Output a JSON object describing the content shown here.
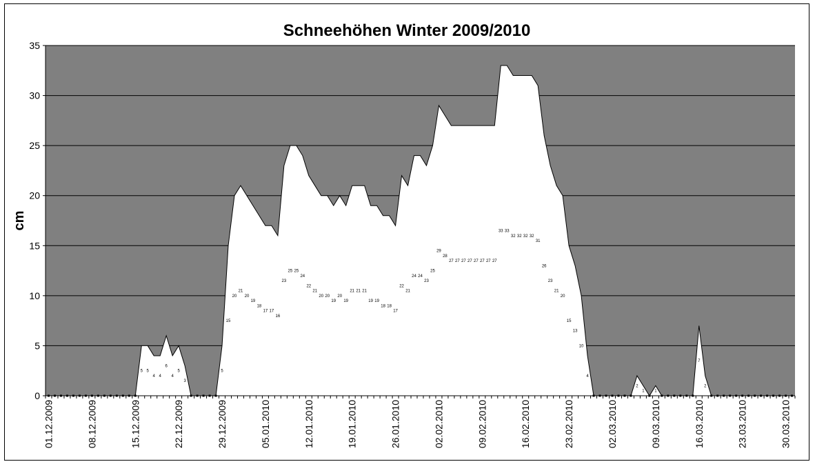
{
  "chart_data": {
    "type": "area",
    "title": "Schneehöhen Winter 2009/2010",
    "xlabel": "",
    "ylabel": "cm",
    "ylim": [
      0,
      35
    ],
    "yticks": [
      0,
      5,
      10,
      15,
      20,
      25,
      30,
      35
    ],
    "grid": true,
    "legend": "none",
    "x_start": "01.12.2009",
    "x_tick_labels": [
      "01.12.2009",
      "08.12.2009",
      "15.12.2009",
      "22.12.2009",
      "29.12.2009",
      "05.01.2010",
      "12.01.2010",
      "19.01.2010",
      "26.01.2010",
      "02.02.2010",
      "09.02.2010",
      "16.02.2010",
      "23.02.2010",
      "02.03.2010",
      "09.03.2010",
      "16.03.2010",
      "23.03.2010",
      "30.03.2010"
    ],
    "colors": {
      "plot_background": "#808080",
      "area_fill": "#ffffff",
      "line": "#000000",
      "grid": "#000000"
    },
    "dates": [
      "01.12.2009",
      "02.12.2009",
      "03.12.2009",
      "04.12.2009",
      "05.12.2009",
      "06.12.2009",
      "07.12.2009",
      "08.12.2009",
      "09.12.2009",
      "10.12.2009",
      "11.12.2009",
      "12.12.2009",
      "13.12.2009",
      "14.12.2009",
      "15.12.2009",
      "16.12.2009",
      "17.12.2009",
      "18.12.2009",
      "19.12.2009",
      "20.12.2009",
      "21.12.2009",
      "22.12.2009",
      "23.12.2009",
      "24.12.2009",
      "25.12.2009",
      "26.12.2009",
      "27.12.2009",
      "28.12.2009",
      "29.12.2009",
      "30.12.2009",
      "31.12.2009",
      "01.01.2010",
      "02.01.2010",
      "03.01.2010",
      "04.01.2010",
      "05.01.2010",
      "06.01.2010",
      "07.01.2010",
      "08.01.2010",
      "09.01.2010",
      "10.01.2010",
      "11.01.2010",
      "12.01.2010",
      "13.01.2010",
      "14.01.2010",
      "15.01.2010",
      "16.01.2010",
      "17.01.2010",
      "18.01.2010",
      "19.01.2010",
      "20.01.2010",
      "21.01.2010",
      "22.01.2010",
      "23.01.2010",
      "24.01.2010",
      "25.01.2010",
      "26.01.2010",
      "27.01.2010",
      "28.01.2010",
      "29.01.2010",
      "30.01.2010",
      "31.01.2010",
      "01.02.2010",
      "02.02.2010",
      "03.02.2010",
      "04.02.2010",
      "05.02.2010",
      "06.02.2010",
      "07.02.2010",
      "08.02.2010",
      "09.02.2010",
      "10.02.2010",
      "11.02.2010",
      "12.02.2010",
      "13.02.2010",
      "14.02.2010",
      "15.02.2010",
      "16.02.2010",
      "17.02.2010",
      "18.02.2010",
      "19.02.2010",
      "20.02.2010",
      "21.02.2010",
      "22.02.2010",
      "23.02.2010",
      "24.02.2010",
      "25.02.2010",
      "26.02.2010",
      "27.02.2010",
      "28.02.2010",
      "01.03.2010",
      "02.03.2010",
      "03.03.2010",
      "04.03.2010",
      "05.03.2010",
      "06.03.2010",
      "07.03.2010",
      "08.03.2010",
      "09.03.2010",
      "10.03.2010",
      "11.03.2010",
      "12.03.2010",
      "13.03.2010",
      "14.03.2010",
      "15.03.2010",
      "16.03.2010",
      "17.03.2010",
      "18.03.2010",
      "19.03.2010",
      "20.03.2010",
      "21.03.2010",
      "22.03.2010",
      "23.03.2010",
      "24.03.2010",
      "25.03.2010",
      "26.03.2010",
      "27.03.2010",
      "28.03.2010",
      "29.03.2010",
      "30.03.2010",
      "31.03.2010"
    ],
    "values": [
      0,
      0,
      0,
      0,
      0,
      0,
      0,
      0,
      0,
      0,
      0,
      0,
      0,
      0,
      0,
      5,
      5,
      4,
      4,
      6,
      4,
      5,
      3,
      0,
      0,
      0,
      0,
      0,
      5,
      15,
      20,
      21,
      20,
      19,
      18,
      17,
      17,
      16,
      23,
      25,
      25,
      24,
      22,
      21,
      20,
      20,
      19,
      20,
      19,
      21,
      21,
      21,
      19,
      19,
      18,
      18,
      17,
      22,
      21,
      24,
      24,
      23,
      25,
      29,
      28,
      27,
      27,
      27,
      27,
      27,
      27,
      27,
      27,
      33,
      33,
      32,
      32,
      32,
      32,
      31,
      26,
      23,
      21,
      20,
      15,
      13,
      10,
      4,
      0,
      0,
      0,
      0,
      0,
      0,
      0,
      2,
      1,
      0,
      1,
      0,
      0,
      0,
      0,
      0,
      0,
      7,
      2,
      0,
      0,
      0,
      0,
      0,
      0,
      0,
      0,
      0,
      0,
      0,
      0,
      0,
      0
    ]
  }
}
